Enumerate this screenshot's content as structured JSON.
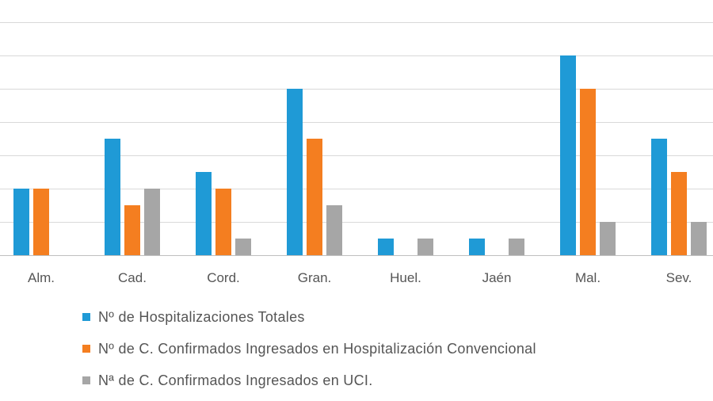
{
  "chart_data": {
    "type": "bar",
    "categories": [
      "Alm.",
      "Cad.",
      "Cord.",
      "Gran.",
      "Huel.",
      "Jaén",
      "Mal.",
      "Sev."
    ],
    "series": [
      {
        "name": "Nº de Hospitalizaciones Totales",
        "color": "#1F9AD6",
        "values": [
          4,
          7,
          5,
          10,
          1,
          1,
          12,
          7
        ]
      },
      {
        "name": "Nº de C. Confirmados Ingresados en Hospitalización Convencional",
        "color": "#F47E20",
        "values": [
          4,
          3,
          4,
          7,
          0,
          0,
          10,
          5
        ]
      },
      {
        "name": "Nª de C. Confirmados Ingresados en UCI.",
        "color": "#A6A6A6",
        "values": [
          0,
          4,
          1,
          3,
          1,
          1,
          2,
          2
        ]
      }
    ],
    "ylim": [
      0,
      14
    ],
    "y_gridline_step": 2,
    "grid": true,
    "legend_position": "bottom-left"
  }
}
